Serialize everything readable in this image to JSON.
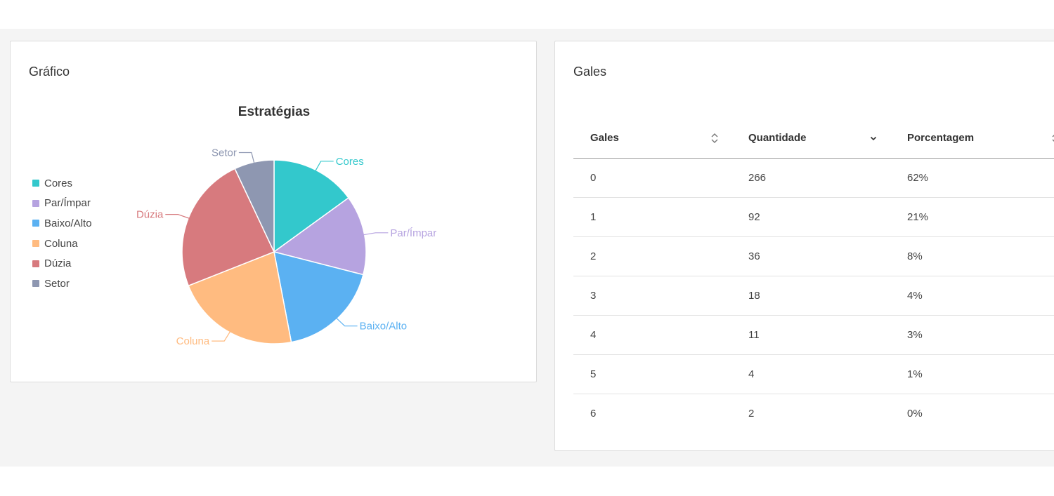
{
  "chart_card": {
    "title": "Gráfico"
  },
  "table_card": {
    "title": "Gales"
  },
  "chart_data": {
    "type": "pie",
    "title": "Estratégias",
    "categories": [
      "Cores",
      "Par/Ímpar",
      "Baixo/Alto",
      "Coluna",
      "Dúzia",
      "Setor"
    ],
    "values": [
      15,
      14,
      18,
      22,
      24,
      7
    ],
    "colors": [
      "#33c8cc",
      "#b6a3e0",
      "#5bb1f2",
      "#ffbb80",
      "#d77a7e",
      "#8e97b1"
    ],
    "legend": "left"
  },
  "table": {
    "columns": [
      {
        "label": "Gales",
        "sort_icon": "sort-both-icon"
      },
      {
        "label": "Quantidade",
        "sort_icon": "sort-desc-icon"
      },
      {
        "label": "Porcentagem",
        "sort_icon": "sort-both-icon"
      }
    ],
    "rows": [
      [
        "0",
        "266",
        "62%"
      ],
      [
        "1",
        "92",
        "21%"
      ],
      [
        "2",
        "36",
        "8%"
      ],
      [
        "3",
        "18",
        "4%"
      ],
      [
        "4",
        "11",
        "3%"
      ],
      [
        "5",
        "4",
        "1%"
      ],
      [
        "6",
        "2",
        "0%"
      ]
    ]
  }
}
